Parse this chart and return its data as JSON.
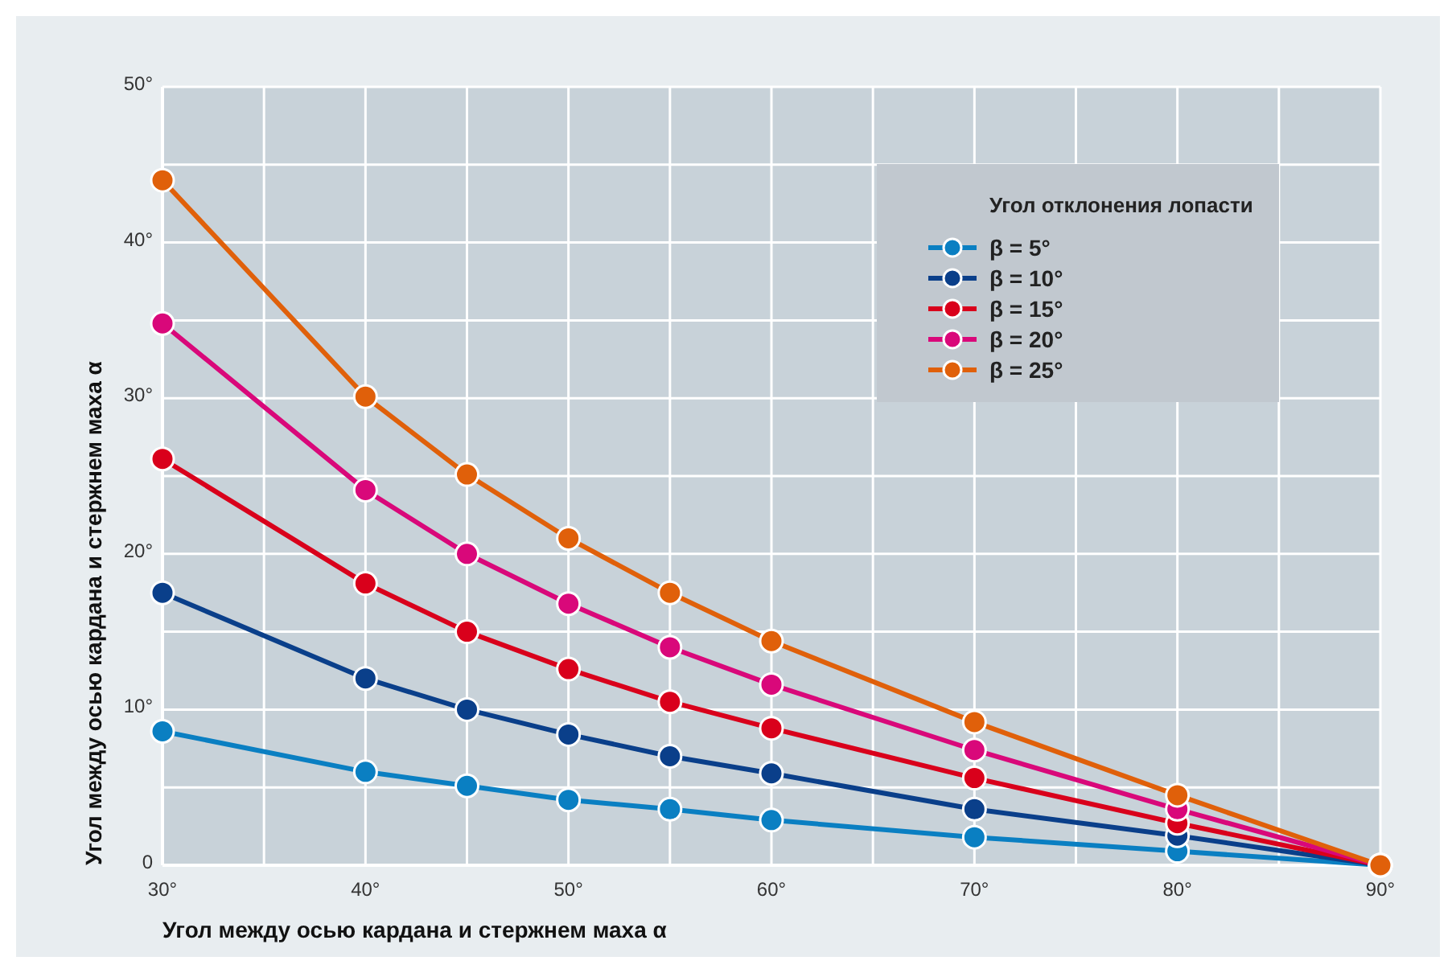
{
  "chart_data": {
    "type": "line",
    "xlabel": "Угол между осью кардана и стержнем маха α",
    "ylabel": "Угол между осью кардана и стержнем маха α",
    "legend_title": "Угол отклонения лопасти",
    "x": [
      30,
      40,
      45,
      50,
      55,
      60,
      70,
      80,
      90
    ],
    "series": [
      {
        "name": "β = 5°",
        "color": "#0a7fc2",
        "values": [
          8.6,
          6.0,
          5.1,
          4.2,
          3.6,
          2.9,
          1.8,
          0.9,
          0
        ]
      },
      {
        "name": "β = 10°",
        "color": "#0a3f8a",
        "values": [
          17.5,
          12.0,
          10.0,
          8.4,
          7.0,
          5.9,
          3.6,
          1.9,
          0
        ]
      },
      {
        "name": "β = 15°",
        "color": "#d9001b",
        "values": [
          26.1,
          18.1,
          15.0,
          12.6,
          10.5,
          8.8,
          5.6,
          2.7,
          0
        ]
      },
      {
        "name": "β = 20°",
        "color": "#d9087a",
        "values": [
          34.8,
          24.1,
          20.0,
          16.8,
          14.0,
          11.6,
          7.4,
          3.6,
          0
        ]
      },
      {
        "name": "β = 25°",
        "color": "#e0600a",
        "values": [
          44.0,
          30.1,
          25.1,
          21.0,
          17.5,
          14.4,
          9.2,
          4.5,
          0
        ]
      }
    ],
    "xlim": [
      30,
      90
    ],
    "ylim": [
      0,
      50
    ],
    "xticks": [
      {
        "value": 30,
        "label": "30°"
      },
      {
        "value": 35,
        "label": null
      },
      {
        "value": 40,
        "label": "40°"
      },
      {
        "value": 45,
        "label": null
      },
      {
        "value": 50,
        "label": "50°"
      },
      {
        "value": 55,
        "label": null
      },
      {
        "value": 60,
        "label": "60°"
      },
      {
        "value": 65,
        "label": null
      },
      {
        "value": 70,
        "label": "70°"
      },
      {
        "value": 75,
        "label": null
      },
      {
        "value": 80,
        "label": "80°"
      },
      {
        "value": 85,
        "label": null
      },
      {
        "value": 90,
        "label": "90°"
      }
    ],
    "yticks": [
      0,
      {
        "value": 5,
        "label": null
      },
      {
        "value": 10,
        "label": "10°"
      },
      {
        "value": 15,
        "label": null
      },
      {
        "value": 20,
        "label": "20°"
      },
      {
        "value": 25,
        "label": null
      },
      {
        "value": 30,
        "label": "30°"
      },
      {
        "value": 35,
        "label": null
      },
      {
        "value": 40,
        "label": "40°"
      },
      {
        "value": 45,
        "label": null
      },
      {
        "value": 50,
        "label": "50°"
      }
    ],
    "grid": true,
    "legend": "top right",
    "marker": "circle",
    "line_style": "solid"
  }
}
